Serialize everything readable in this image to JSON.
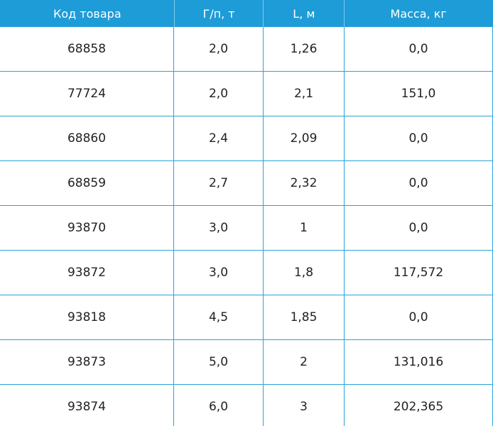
{
  "table": {
    "headers": [
      "Код товара",
      "Г/п, т",
      "L, м",
      "Масса, кг"
    ],
    "rows": [
      [
        "68858",
        "2,0",
        "1,26",
        "0,0"
      ],
      [
        "77724",
        "2,0",
        "2,1",
        "151,0"
      ],
      [
        "68860",
        "2,4",
        "2,09",
        "0,0"
      ],
      [
        "68859",
        "2,7",
        "2,32",
        "0,0"
      ],
      [
        "93870",
        "3,0",
        "1",
        "0,0"
      ],
      [
        "93872",
        "3,0",
        "1,8",
        "117,572"
      ],
      [
        "93818",
        "4,5",
        "1,85",
        "0,0"
      ],
      [
        "93873",
        "5,0",
        "2",
        "131,016"
      ],
      [
        "93874",
        "6,0",
        "3",
        "202,365"
      ]
    ]
  },
  "colors": {
    "header_bg": "#1e9cd7",
    "grid": "#2aa3dc",
    "text": "#222222"
  }
}
